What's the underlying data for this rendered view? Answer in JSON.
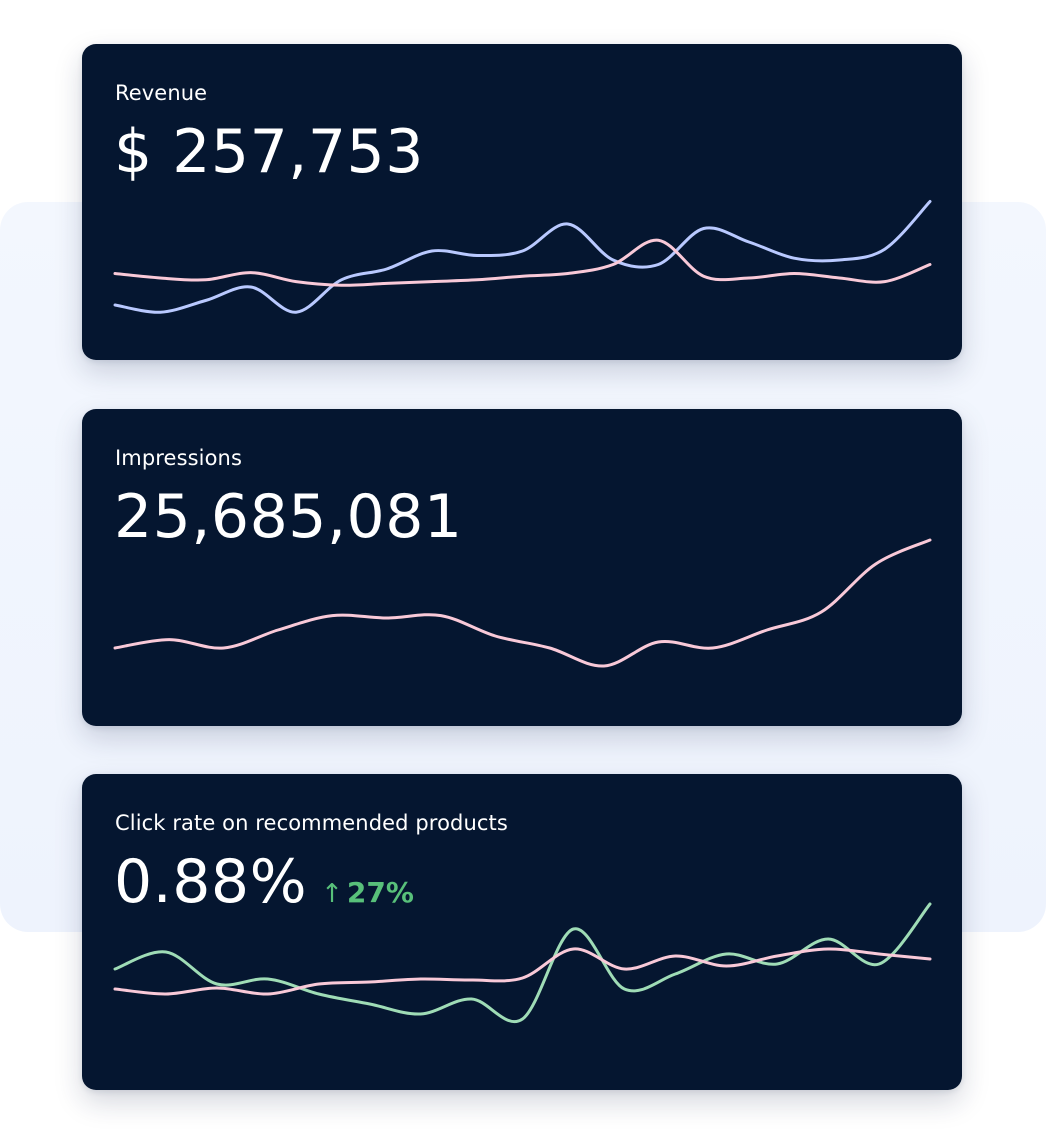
{
  "cards": [
    {
      "label": "Revenue",
      "value": "$ 257,753",
      "series": [
        {
          "color": "#b9c9ff",
          "values": [
            0.1,
            0.02,
            0.15,
            0.3,
            0.02,
            0.38,
            0.5,
            0.7,
            0.65,
            0.7,
            1.0,
            0.6,
            0.55,
            0.95,
            0.8,
            0.62,
            0.6,
            0.72,
            1.25
          ]
        },
        {
          "color": "#f9c9d8",
          "values": [
            0.45,
            0.4,
            0.38,
            0.46,
            0.36,
            0.32,
            0.34,
            0.36,
            0.38,
            0.42,
            0.45,
            0.55,
            0.82,
            0.42,
            0.4,
            0.45,
            0.4,
            0.36,
            0.55
          ]
        }
      ]
    },
    {
      "label": "Impressions",
      "value": "25,685,081",
      "series": [
        {
          "color": "#f9c9d8",
          "values": [
            0.05,
            0.12,
            0.05,
            0.2,
            0.32,
            0.3,
            0.32,
            0.15,
            0.05,
            -0.1,
            0.1,
            0.05,
            0.2,
            0.35,
            0.75,
            0.95
          ]
        }
      ]
    },
    {
      "label": "Click rate on recommended products",
      "value": "0.88%",
      "delta": "27%",
      "series": [
        {
          "color": "#9fdcb6",
          "values": [
            0.55,
            0.72,
            0.4,
            0.45,
            0.3,
            0.2,
            0.1,
            0.25,
            0.05,
            0.95,
            0.35,
            0.5,
            0.7,
            0.6,
            0.85,
            0.6,
            1.2
          ]
        },
        {
          "color": "#f9c9d8",
          "values": [
            0.35,
            0.3,
            0.36,
            0.3,
            0.4,
            0.42,
            0.45,
            0.44,
            0.46,
            0.75,
            0.55,
            0.68,
            0.58,
            0.68,
            0.75,
            0.7,
            0.65
          ]
        }
      ]
    }
  ]
}
